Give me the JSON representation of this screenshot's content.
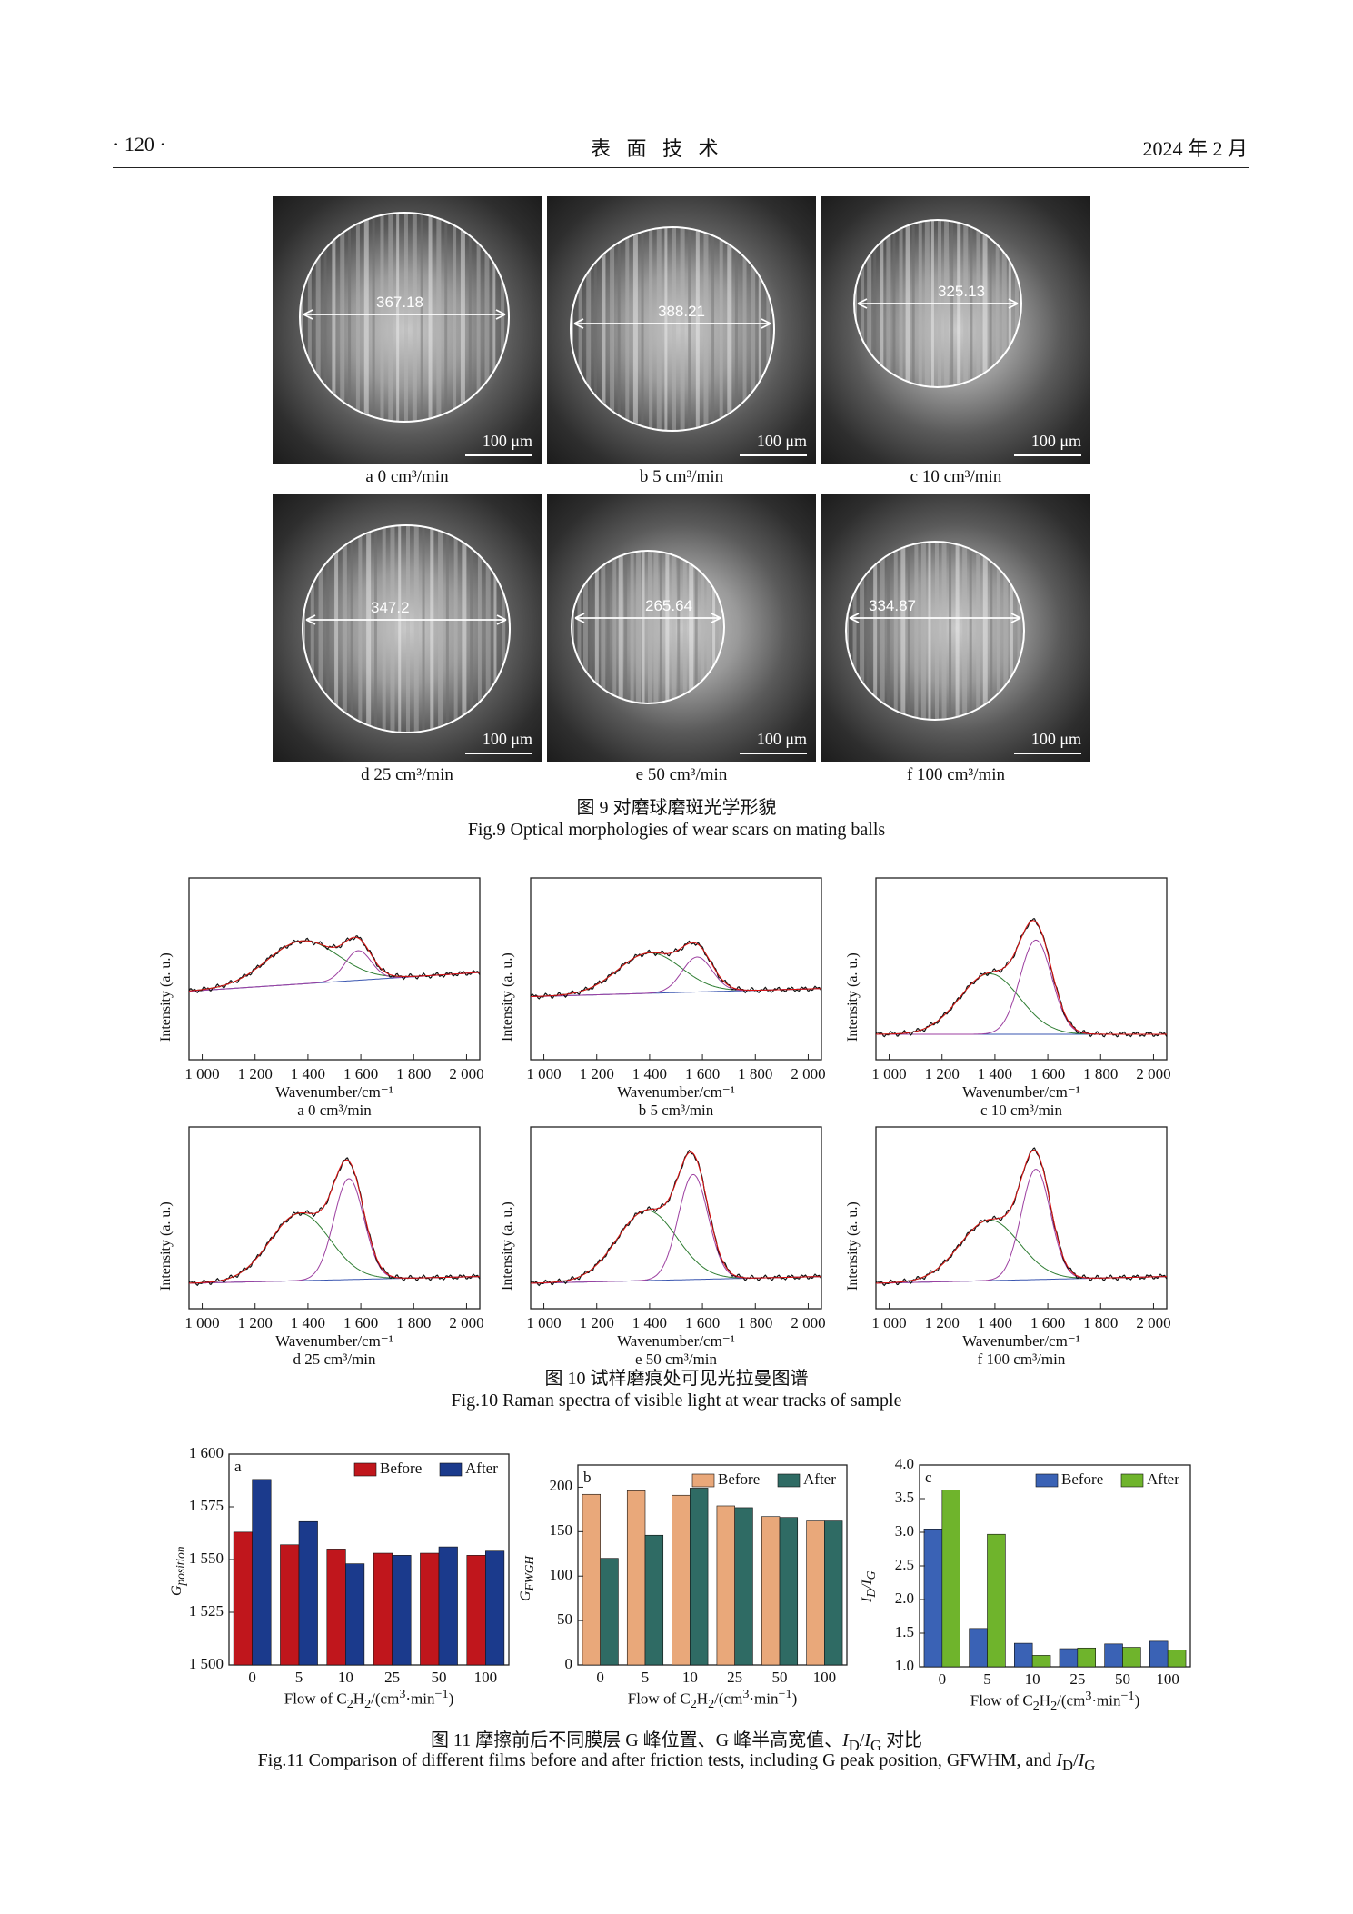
{
  "header": {
    "page": "· 120 ·",
    "journal": "表  面  技  术",
    "date": "2024 年 2 月"
  },
  "fig9": {
    "title_cn": "图 9    对磨球磨斑光学形貌",
    "title_en": "Fig.9 Optical morphologies of wear scars on mating balls",
    "scale_bar": "100 μm",
    "panels": [
      {
        "label": "a  0 cm³/min",
        "value": "367.18"
      },
      {
        "label": "b  5 cm³/min",
        "value": "388.21"
      },
      {
        "label": "c  10 cm³/min",
        "value": "325.13"
      },
      {
        "label": "d  25 cm³/min",
        "value": "347.2"
      },
      {
        "label": "e  50 cm³/min",
        "value": "265.64"
      },
      {
        "label": "f   100 cm³/min",
        "value": "334.87"
      }
    ]
  },
  "fig10": {
    "title_cn": "图 10    试样磨痕处可见光拉曼图谱",
    "title_en": "Fig.10 Raman spectra of visible light at wear tracks of sample",
    "ylabel": "Intensity (a. u.)",
    "xlabel": "Wavenumber/cm⁻¹",
    "xticks": [
      "1 000",
      "1 200",
      "1 400",
      "1 600",
      "1 800",
      "2 000"
    ],
    "panels": [
      {
        "label": "a  0 cm³/min"
      },
      {
        "label": "b  5 cm³/min"
      },
      {
        "label": "c  10 cm³/min"
      },
      {
        "label": "d  25 cm³/min"
      },
      {
        "label": "e  50 cm³/min"
      },
      {
        "label": "f  100 cm³/min"
      }
    ]
  },
  "fig11": {
    "title_cn": "图 11    摩擦前后不同膜层 G 峰位置、G 峰半高宽值、I<sub>D</sub>/I<sub>G</sub> 对比",
    "title_cn_plain": "图 11    摩擦前后不同膜层 G 峰位置、G 峰半高宽值、ID/IG 对比",
    "title_en": "Fig.11 Comparison of different films before and after friction tests, including G peak position, GFWHM, and ID/IG",
    "xlabel": "Flow of C2H2/(cm³·min⁻¹)"
  },
  "chart_data": [
    {
      "type": "bar",
      "panel": "a",
      "categories": [
        "0",
        "5",
        "10",
        "25",
        "50",
        "100"
      ],
      "ylabel": "G_position",
      "xlabel": "Flow of C2H2/(cm³·min⁻¹)",
      "ylim": [
        1500,
        1600
      ],
      "yticks": [
        "1 500",
        "1 525",
        "1 550",
        "1 575",
        "1 600"
      ],
      "series": [
        {
          "name": "Before",
          "color": "#c0161c",
          "values": [
            1563,
            1557,
            1555,
            1553,
            1553,
            1552
          ]
        },
        {
          "name": "After",
          "color": "#1b3a8c",
          "values": [
            1588,
            1568,
            1548,
            1552,
            1556,
            1554
          ]
        }
      ],
      "legend": "top-right"
    },
    {
      "type": "bar",
      "panel": "b",
      "categories": [
        "0",
        "5",
        "10",
        "25",
        "50",
        "100"
      ],
      "ylabel": "G_FWGH",
      "xlabel": "Flow of C2H2/(cm³·min⁻¹)",
      "ylim": [
        0,
        225
      ],
      "yticks": [
        "0",
        "50",
        "100",
        "150",
        "200"
      ],
      "series": [
        {
          "name": "Before",
          "color": "#e9a87a",
          "values": [
            192,
            196,
            191,
            179,
            167,
            162
          ]
        },
        {
          "name": "After",
          "color": "#2f6b64",
          "values": [
            120,
            146,
            199,
            177,
            166,
            162
          ]
        }
      ],
      "legend": "top-right"
    },
    {
      "type": "bar",
      "panel": "c",
      "categories": [
        "0",
        "5",
        "10",
        "25",
        "50",
        "100"
      ],
      "ylabel": "ID/IG",
      "xlabel": "Flow of C2H2/(cm³·min⁻¹)",
      "ylim": [
        1.0,
        4.0
      ],
      "yticks": [
        "1.0",
        "1.5",
        "2.0",
        "2.5",
        "3.0",
        "3.5",
        "4.0"
      ],
      "series": [
        {
          "name": "Before",
          "color": "#3a62b5",
          "values": [
            3.05,
            1.57,
            1.35,
            1.27,
            1.34,
            1.38
          ]
        },
        {
          "name": "After",
          "color": "#6fb42c",
          "values": [
            3.63,
            2.97,
            1.17,
            1.28,
            1.29,
            1.25
          ]
        }
      ],
      "legend": "top-right"
    }
  ]
}
